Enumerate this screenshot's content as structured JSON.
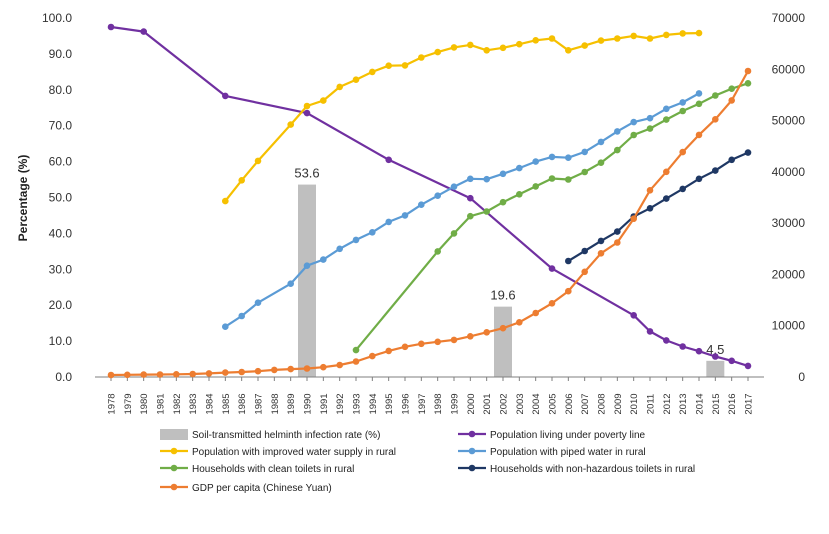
{
  "chart_data": {
    "type": "line",
    "title": "",
    "ylabel": "Percentage (%)",
    "y2label": "",
    "ylim": [
      0,
      100
    ],
    "y2lim": [
      0,
      70000
    ],
    "yticks": [
      "0.0",
      "10.0",
      "20.0",
      "30.0",
      "40.0",
      "50.0",
      "60.0",
      "70.0",
      "80.0",
      "90.0",
      "100.0"
    ],
    "y2ticks": [
      "0",
      "10000",
      "20000",
      "30000",
      "40000",
      "50000",
      "60000",
      "70000"
    ],
    "years": [
      "1978",
      "1979",
      "1980",
      "1981",
      "1982",
      "1983",
      "1984",
      "1985",
      "1986",
      "1987",
      "1988",
      "1989",
      "1990",
      "1991",
      "1992",
      "1993",
      "1994",
      "1995",
      "1996",
      "1997",
      "1998",
      "1999",
      "2000",
      "2001",
      "2002",
      "2003",
      "2004",
      "2005",
      "2006",
      "2007",
      "2008",
      "2009",
      "2010",
      "2011",
      "2012",
      "2013",
      "2014",
      "2015",
      "2016",
      "2017"
    ],
    "bars": {
      "name": "Soil-transmitted helminth infection rate (%)",
      "color": "#bfbfbf",
      "points": [
        {
          "year": "1990",
          "value": 53.6,
          "label": "53.6"
        },
        {
          "year": "2002",
          "value": 19.6,
          "label": "19.6"
        },
        {
          "year": "2015",
          "value": 4.5,
          "label": "4.5"
        }
      ]
    },
    "series": [
      {
        "name": "Population living under poverty line",
        "color": "#7030a0",
        "axis": "left",
        "points": [
          [
            "1978",
            97.5
          ],
          [
            "1980",
            96.2
          ],
          [
            "1985",
            78.3
          ],
          [
            "1990",
            73.5
          ],
          [
            "1995",
            60.5
          ],
          [
            "2000",
            49.8
          ],
          [
            "2005",
            30.2
          ],
          [
            "2010",
            17.2
          ],
          [
            "2011",
            12.7
          ],
          [
            "2012",
            10.2
          ],
          [
            "2013",
            8.5
          ],
          [
            "2014",
            7.2
          ],
          [
            "2015",
            5.7
          ],
          [
            "2016",
            4.5
          ],
          [
            "2017",
            3.1
          ]
        ]
      },
      {
        "name": "Population with improved water supply in rural",
        "color": "#f6c000",
        "axis": "left",
        "points": [
          [
            "1985",
            49
          ],
          [
            "1986",
            54.8
          ],
          [
            "1987",
            60.2
          ],
          [
            "1989",
            70.3
          ],
          [
            "1990",
            75.5
          ],
          [
            "1991",
            77
          ],
          [
            "1992",
            80.8
          ],
          [
            "1993",
            82.8
          ],
          [
            "1994",
            85
          ],
          [
            "1995",
            86.7
          ],
          [
            "1996",
            86.8
          ],
          [
            "1997",
            89
          ],
          [
            "1998",
            90.5
          ],
          [
            "1999",
            91.8
          ],
          [
            "2000",
            92.5
          ],
          [
            "2001",
            91
          ],
          [
            "2002",
            91.7
          ],
          [
            "2003",
            92.7
          ],
          [
            "2004",
            93.8
          ],
          [
            "2005",
            94.3
          ],
          [
            "2006",
            91
          ],
          [
            "2007",
            92.3
          ],
          [
            "2008",
            93.7
          ],
          [
            "2009",
            94.3
          ],
          [
            "2010",
            95
          ],
          [
            "2011",
            94.3
          ],
          [
            "2012",
            95.3
          ],
          [
            "2013",
            95.7
          ],
          [
            "2014",
            95.8
          ]
        ]
      },
      {
        "name": "Population with piped water in rural",
        "color": "#5b9bd5",
        "axis": "left",
        "points": [
          [
            "1985",
            14
          ],
          [
            "1986",
            17
          ],
          [
            "1987",
            20.7
          ],
          [
            "1989",
            26
          ],
          [
            "1990",
            31
          ],
          [
            "1991",
            32.7
          ],
          [
            "1992",
            35.7
          ],
          [
            "1993",
            38.2
          ],
          [
            "1994",
            40.3
          ],
          [
            "1995",
            43.2
          ],
          [
            "1996",
            45
          ],
          [
            "1997",
            48
          ],
          [
            "1998",
            50.5
          ],
          [
            "1999",
            53
          ],
          [
            "2000",
            55.2
          ],
          [
            "2001",
            55.1
          ],
          [
            "2002",
            56.6
          ],
          [
            "2003",
            58.2
          ],
          [
            "2004",
            60
          ],
          [
            "2005",
            61.3
          ],
          [
            "2006",
            61.1
          ],
          [
            "2007",
            62.7
          ],
          [
            "2008",
            65.5
          ],
          [
            "2009",
            68.4
          ],
          [
            "2010",
            71
          ],
          [
            "2011",
            72.1
          ],
          [
            "2012",
            74.7
          ],
          [
            "2013",
            76.5
          ],
          [
            "2014",
            79
          ]
        ]
      },
      {
        "name": "Households with clean toilets in rural",
        "color": "#70ad47",
        "axis": "left",
        "points": [
          [
            "1993",
            7.5
          ],
          [
            "1998",
            35
          ],
          [
            "1999",
            40
          ],
          [
            "2000",
            44.8
          ],
          [
            "2001",
            46.1
          ],
          [
            "2002",
            48.7
          ],
          [
            "2003",
            50.9
          ],
          [
            "2004",
            53.1
          ],
          [
            "2005",
            55.3
          ],
          [
            "2006",
            55
          ],
          [
            "2007",
            57.1
          ],
          [
            "2008",
            59.7
          ],
          [
            "2009",
            63.2
          ],
          [
            "2010",
            67.4
          ],
          [
            "2011",
            69.2
          ],
          [
            "2012",
            71.7
          ],
          [
            "2013",
            74.1
          ],
          [
            "2014",
            76.1
          ],
          [
            "2015",
            78.4
          ],
          [
            "2016",
            80.3
          ],
          [
            "2017",
            81.8
          ]
        ]
      },
      {
        "name": "Households with non-hazardous toilets in rural",
        "color": "#1f3864",
        "axis": "left",
        "points": [
          [
            "2006",
            32.3
          ],
          [
            "2007",
            35.1
          ],
          [
            "2008",
            37.9
          ],
          [
            "2009",
            40.5
          ],
          [
            "2010",
            44.7
          ],
          [
            "2011",
            47
          ],
          [
            "2012",
            49.7
          ],
          [
            "2013",
            52.4
          ],
          [
            "2014",
            55.2
          ],
          [
            "2015",
            57.5
          ],
          [
            "2016",
            60.5
          ],
          [
            "2017",
            62.5
          ]
        ]
      },
      {
        "name": "GDP per capita (Chinese Yuan)",
        "color": "#ed7d31",
        "axis": "right",
        "points": [
          [
            "1978",
            385
          ],
          [
            "1979",
            423
          ],
          [
            "1980",
            468
          ],
          [
            "1981",
            497
          ],
          [
            "1982",
            533
          ],
          [
            "1983",
            588
          ],
          [
            "1984",
            702
          ],
          [
            "1985",
            866
          ],
          [
            "1986",
            973
          ],
          [
            "1987",
            1123
          ],
          [
            "1988",
            1378
          ],
          [
            "1989",
            1536
          ],
          [
            "1990",
            1663
          ],
          [
            "1991",
            1912
          ],
          [
            "1992",
            2334
          ],
          [
            "1993",
            3027
          ],
          [
            "1994",
            4081
          ],
          [
            "1995",
            5091
          ],
          [
            "1996",
            5898
          ],
          [
            "1997",
            6481
          ],
          [
            "1998",
            6860
          ],
          [
            "1999",
            7229
          ],
          [
            "2000",
            7942
          ],
          [
            "2001",
            8717
          ],
          [
            "2002",
            9506
          ],
          [
            "2003",
            10666
          ],
          [
            "2004",
            12487
          ],
          [
            "2005",
            14368
          ],
          [
            "2006",
            16738
          ],
          [
            "2007",
            20505
          ],
          [
            "2008",
            24121
          ],
          [
            "2009",
            26222
          ],
          [
            "2010",
            30876
          ],
          [
            "2011",
            36403
          ],
          [
            "2012",
            40007
          ],
          [
            "2013",
            43852
          ],
          [
            "2014",
            47203
          ],
          [
            "2015",
            50251
          ],
          [
            "2016",
            53935
          ],
          [
            "2017",
            59660
          ]
        ]
      }
    ],
    "legend": {
      "position": "bottom",
      "items": [
        {
          "label": "Soil-transmitted helminth infection rate (%)",
          "color": "#bfbfbf",
          "kind": "bar"
        },
        {
          "label": "Population living under poverty line",
          "color": "#7030a0",
          "kind": "line"
        },
        {
          "label": "Population with improved water supply in rural",
          "color": "#f6c000",
          "kind": "line"
        },
        {
          "label": "Population with piped water in rural",
          "color": "#5b9bd5",
          "kind": "line"
        },
        {
          "label": "Households with clean toilets in rural",
          "color": "#70ad47",
          "kind": "line"
        },
        {
          "label": "Households with non-hazardous toilets in rural",
          "color": "#1f3864",
          "kind": "line"
        },
        {
          "label": "GDP per capita (Chinese Yuan)",
          "color": "#ed7d31",
          "kind": "line"
        }
      ]
    }
  }
}
